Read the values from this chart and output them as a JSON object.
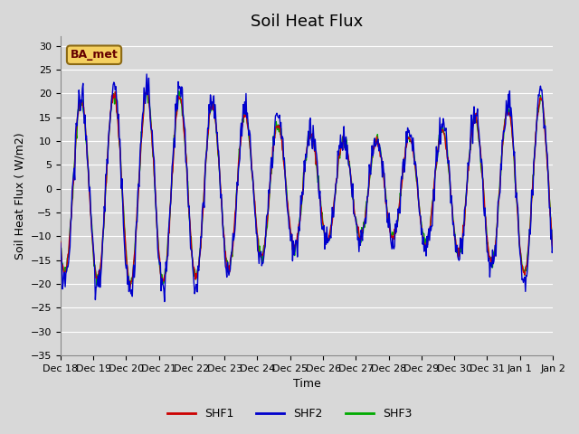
{
  "title": "Soil Heat Flux",
  "xlabel": "Time",
  "ylabel": "Soil Heat Flux ( W/m2)",
  "ylim": [
    -35,
    32
  ],
  "yticks": [
    -35,
    -30,
    -25,
    -20,
    -15,
    -10,
    -5,
    0,
    5,
    10,
    15,
    20,
    25,
    30
  ],
  "background_color": "#d8d8d8",
  "plot_bg_color": "#d8d8d8",
  "series_colors": {
    "SHF1": "#cc0000",
    "SHF2": "#0000cc",
    "SHF3": "#00aa00"
  },
  "legend_label": "BA_met",
  "legend_box_facecolor": "#f5d060",
  "legend_box_edgecolor": "#8b6914",
  "legend_text_color": "#660000",
  "grid_color": "#ffffff",
  "x_labels": [
    "Dec 18",
    "Dec 19",
    "Dec 20",
    "Dec 21",
    "Dec 22",
    "Dec 23",
    "Dec 24",
    "Dec 25",
    "Dec 26",
    "Dec 27",
    "Dec 28",
    "Dec 29",
    "Dec 30",
    "Dec 31",
    "Jan 1",
    "Jan 2"
  ],
  "title_fontsize": 13,
  "axis_label_fontsize": 9,
  "tick_fontsize": 8,
  "line_width": 1.0
}
